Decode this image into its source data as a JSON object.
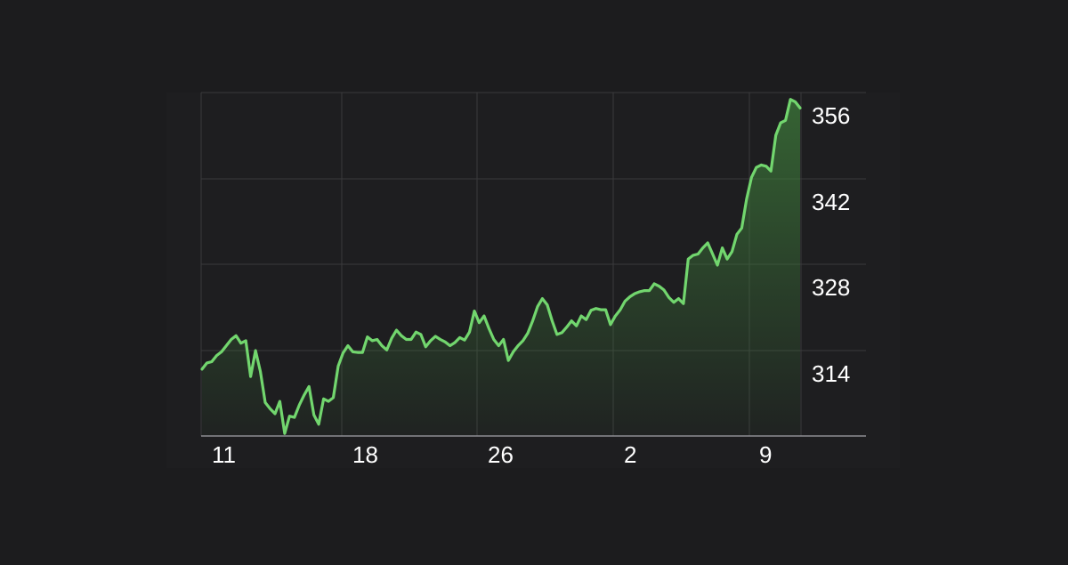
{
  "chart_data": {
    "type": "area",
    "x_tick_labels": [
      "11",
      "18",
      "26",
      "2",
      "9"
    ],
    "y_tick_labels": [
      "356",
      "342",
      "328",
      "314"
    ],
    "y_ticks": [
      356,
      342,
      328,
      314
    ],
    "ylim": [
      303,
      358.5
    ],
    "grid": true,
    "legend": "none",
    "series": [
      {
        "values": [
          313.8,
          314.8,
          315.0,
          316.0,
          316.6,
          317.6,
          318.6,
          319.2,
          318.0,
          318.4,
          312.6,
          316.8,
          313.4,
          308.4,
          307.4,
          306.6,
          308.6,
          303.4,
          306.2,
          306.0,
          308.0,
          309.6,
          311.0,
          306.4,
          304.9,
          309.0,
          308.6,
          309.2,
          314.3,
          316.4,
          317.6,
          316.6,
          316.5,
          316.5,
          319.0,
          318.4,
          318.6,
          317.6,
          316.9,
          318.8,
          320.1,
          319.2,
          318.6,
          318.6,
          319.8,
          319.4,
          317.4,
          318.4,
          319.1,
          318.6,
          318.2,
          317.6,
          318.1,
          318.9,
          318.5,
          319.8,
          323.2,
          321.3,
          322.4,
          320.4,
          318.6,
          317.6,
          318.6,
          315.2,
          316.6,
          317.6,
          318.4,
          319.6,
          321.6,
          323.9,
          325.2,
          324.2,
          321.6,
          319.4,
          319.7,
          320.6,
          321.6,
          320.8,
          322.4,
          321.8,
          323.3,
          323.6,
          323.4,
          323.4,
          321.0,
          322.4,
          323.4,
          324.8,
          325.5,
          326.0,
          326.3,
          326.5,
          326.5,
          327.6,
          327.2,
          326.6,
          325.4,
          324.6,
          325.2,
          324.4,
          331.6,
          332.2,
          332.4,
          333.4,
          334.2,
          332.4,
          330.6,
          333.4,
          331.6,
          332.8,
          335.6,
          336.6,
          341.3,
          344.8,
          346.4,
          346.8,
          346.6,
          345.8,
          351.6,
          353.6,
          354.0,
          357.4,
          357.0,
          356.0
        ]
      }
    ]
  }
}
